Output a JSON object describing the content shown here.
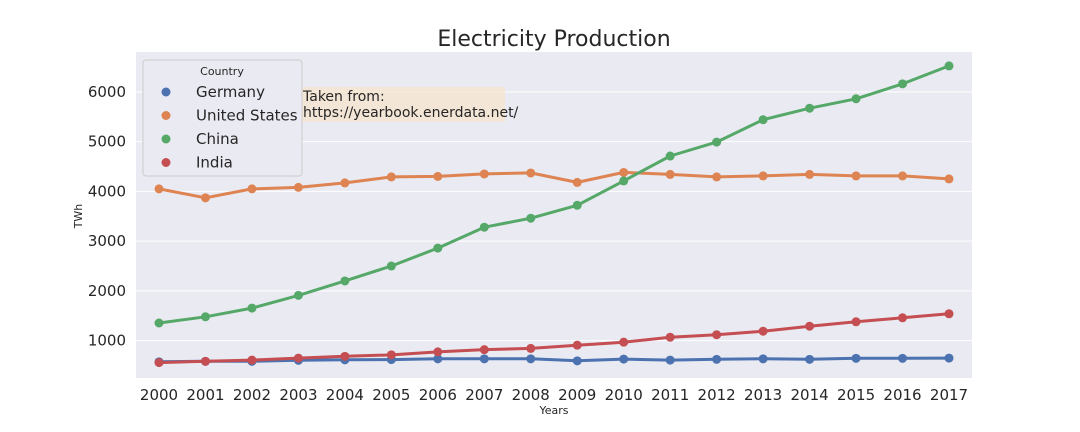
{
  "chart_data": {
    "type": "line",
    "title": "Electricity Production",
    "xlabel": "Years",
    "ylabel": "TWh",
    "categories": [
      "2000",
      "2001",
      "2002",
      "2003",
      "2004",
      "2005",
      "2006",
      "2007",
      "2008",
      "2009",
      "2010",
      "2011",
      "2012",
      "2013",
      "2014",
      "2015",
      "2016",
      "2017"
    ],
    "ylim": [
      250,
      6800
    ],
    "yticks": [
      1000,
      2000,
      3000,
      4000,
      5000,
      6000
    ],
    "grid": true,
    "legend": {
      "title": "Country",
      "placement": "top-left"
    },
    "annotation": {
      "lines": [
        "Taken from:",
        "https://yearbook.enerdata.net/"
      ]
    },
    "series": [
      {
        "name": "Germany",
        "color": "#4c72b0",
        "values": [
          575,
          585,
          585,
          605,
          615,
          620,
          635,
          635,
          635,
          595,
          630,
          610,
          625,
          635,
          625,
          645,
          645,
          650
        ]
      },
      {
        "name": "United States",
        "color": "#dd8452",
        "values": [
          4050,
          3870,
          4050,
          4080,
          4170,
          4290,
          4300,
          4350,
          4370,
          4180,
          4380,
          4340,
          4290,
          4310,
          4340,
          4310,
          4310,
          4250
        ]
      },
      {
        "name": "China",
        "color": "#55a868",
        "values": [
          1355,
          1480,
          1655,
          1910,
          2200,
          2500,
          2860,
          3280,
          3460,
          3720,
          4210,
          4710,
          4990,
          5440,
          5670,
          5860,
          6160,
          6520
        ]
      },
      {
        "name": "India",
        "color": "#c44e52",
        "values": [
          560,
          585,
          610,
          650,
          685,
          715,
          775,
          820,
          845,
          910,
          970,
          1070,
          1120,
          1190,
          1290,
          1380,
          1460,
          1540
        ]
      }
    ]
  }
}
